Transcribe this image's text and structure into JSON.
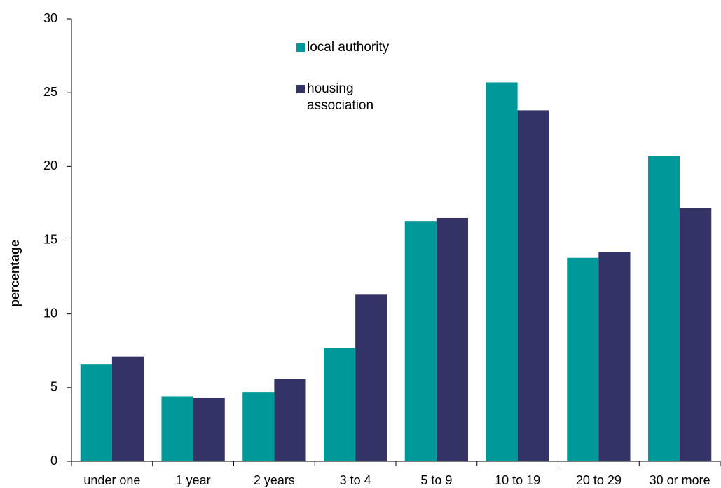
{
  "chart_data": {
    "type": "bar",
    "y_label": "percentage",
    "categories": [
      "under one",
      "1 year",
      "2 years",
      "3 to 4",
      "5 to 9",
      "10 to 19",
      "20 to 29",
      "30 or more"
    ],
    "series": [
      {
        "name": "local authority",
        "color": "#009999",
        "values": [
          6.6,
          4.4,
          4.7,
          7.7,
          16.3,
          25.7,
          13.8,
          20.7
        ]
      },
      {
        "name": "housing association",
        "color": "#333366",
        "values": [
          7.1,
          4.3,
          5.6,
          11.3,
          16.5,
          23.8,
          14.2,
          17.2
        ]
      }
    ],
    "ylim": [
      0,
      30
    ],
    "yticks": [
      0,
      5,
      10,
      15,
      20,
      25,
      30
    ],
    "grid": false,
    "legend": "top"
  }
}
